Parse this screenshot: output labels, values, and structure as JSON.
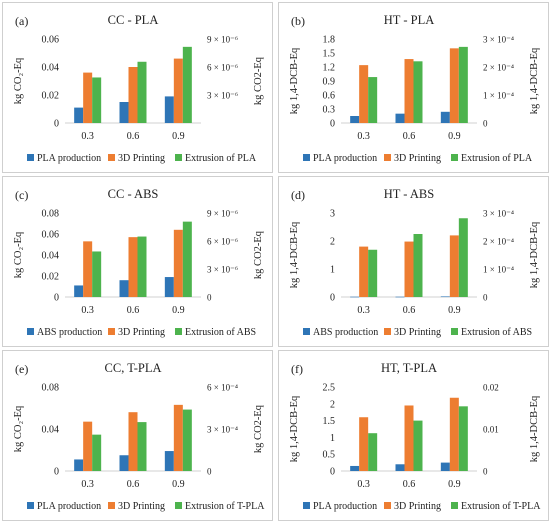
{
  "colors": {
    "s1": "#2E75B6",
    "s2": "#ED7D31",
    "s3": "#4DB34D",
    "axis": "#d0d0d0"
  },
  "chart_data": [
    {
      "type": "bar",
      "panel_label": "(a)",
      "title": "CC - PLA",
      "categories": [
        "0.3",
        "0.6",
        "0.9"
      ],
      "ylabel": "kg CO₂-Eq",
      "ylabel2": "kg CO2-Eq",
      "ylim": [
        0,
        0.06
      ],
      "yticks": [
        "0",
        "0.02",
        "0.04",
        "0.06"
      ],
      "ylim2": [
        0,
        1.07e-05
      ],
      "yticks2": [
        "3 × 10⁻⁶",
        "6 × 10⁻⁶",
        "9 × 10⁻⁶"
      ],
      "series": [
        {
          "name": "PLA production",
          "values": [
            0.011,
            0.015,
            0.019
          ]
        },
        {
          "name": "3D Printing",
          "values": [
            0.036,
            0.04,
            0.046
          ]
        },
        {
          "name": "Extrusion of PLA",
          "values": [
            5.8e-06,
            7.8e-06,
            9.7e-06
          ],
          "axis": "right"
        }
      ]
    },
    {
      "type": "bar",
      "panel_label": "(b)",
      "title": "HT - PLA",
      "categories": [
        "0.3",
        "0.6",
        "0.9"
      ],
      "ylabel": "kg 1,4-DCB-Eq",
      "ylabel2": "kg 1,4-DCB-Eq",
      "ylim": [
        0,
        1.8
      ],
      "yticks": [
        "0",
        "0.3",
        "0.6",
        "0.9",
        "1.2",
        "1.5",
        "1.8"
      ],
      "ylim2": [
        0,
        0.00032
      ],
      "yticks2": [
        "0",
        "1 × 10⁻⁴",
        "2 × 10⁻⁴",
        "3 × 10⁻⁴"
      ],
      "series": [
        {
          "name": "PLA production",
          "values": [
            0.15,
            0.2,
            0.24
          ]
        },
        {
          "name": "3D Printing",
          "values": [
            1.24,
            1.37,
            1.6
          ]
        },
        {
          "name": "Extrusion of PLA",
          "values": [
            0.000175,
            0.000235,
            0.00029
          ],
          "axis": "right"
        }
      ]
    },
    {
      "type": "bar",
      "panel_label": "(c)",
      "title": "CC - ABS",
      "categories": [
        "0.3",
        "0.6",
        "0.9"
      ],
      "ylabel": "kg CO₂-Eq",
      "ylabel2": "kg CO2-Eq",
      "ylim": [
        0,
        0.08
      ],
      "yticks": [
        "0",
        "0.02",
        "0.04",
        "0.06",
        "0.08"
      ],
      "ylim2": [
        0,
        1.07e-05
      ],
      "yticks2": [
        "0",
        "3 × 10⁻⁶",
        "6 × 10⁻⁶",
        "9 × 10⁻⁶"
      ],
      "series": [
        {
          "name": "ABS production",
          "values": [
            0.011,
            0.016,
            0.019
          ]
        },
        {
          "name": "3D Printing",
          "values": [
            0.053,
            0.057,
            0.064
          ]
        },
        {
          "name": "Extrusion of ABS",
          "values": [
            5.8e-06,
            7.7e-06,
            9.6e-06
          ],
          "axis": "right"
        }
      ]
    },
    {
      "type": "bar",
      "panel_label": "(d)",
      "title": "HT - ABS",
      "categories": [
        "0.3",
        "0.6",
        "0.9"
      ],
      "ylabel": "kg 1,4-DCB-Eq",
      "ylabel2": "kg 1,4-DCB-Eq",
      "ylim": [
        0,
        3
      ],
      "yticks": [
        "0",
        "1",
        "2",
        "3"
      ],
      "ylim2": [
        0,
        0.00032
      ],
      "yticks2": [
        "0",
        "1 × 10⁻⁴",
        "2 × 10⁻⁴",
        "3 × 10⁻⁴"
      ],
      "series": [
        {
          "name": "ABS production",
          "values": [
            0.01,
            0.01,
            0.02
          ]
        },
        {
          "name": "3D Printing",
          "values": [
            1.8,
            1.98,
            2.2
          ]
        },
        {
          "name": "Extrusion of ABS",
          "values": [
            0.00018,
            0.00024,
            0.0003
          ],
          "axis": "right"
        }
      ]
    },
    {
      "type": "bar",
      "panel_label": "(e)",
      "title": "CC, T-PLA",
      "categories": [
        "0.3",
        "0.6",
        "0.9"
      ],
      "ylabel": "kg CO₂-Eq",
      "ylabel2": "kg CO2-Eq",
      "ylim": [
        0,
        0.08
      ],
      "yticks": [
        "0",
        "0.04",
        "0.08"
      ],
      "ylim2": [
        0,
        0.00067
      ],
      "yticks2": [
        "0",
        "3 × 10⁻⁴",
        "6 × 10⁻⁴"
      ],
      "series": [
        {
          "name": "PLA production",
          "values": [
            0.011,
            0.015,
            0.019
          ]
        },
        {
          "name": "3D Printing",
          "values": [
            0.047,
            0.056,
            0.063
          ]
        },
        {
          "name": "Extrusion of T-PLA",
          "values": [
            0.00029,
            0.00039,
            0.00049
          ],
          "axis": "right"
        }
      ]
    },
    {
      "type": "bar",
      "panel_label": "(f)",
      "title": "HT, T-PLA",
      "categories": [
        "0.3",
        "0.6",
        "0.9"
      ],
      "ylabel": "kg 1,4-DCB-Eq",
      "ylabel2": "kg 1,4-DCB-Eq",
      "ylim": [
        0,
        2.5
      ],
      "yticks": [
        "0",
        "0.5",
        "1",
        "1.5",
        "2",
        "2.5"
      ],
      "ylim2": [
        0,
        0.02
      ],
      "yticks2": [
        "0",
        "0.01",
        "0.02"
      ],
      "series": [
        {
          "name": "PLA production",
          "values": [
            0.15,
            0.2,
            0.25
          ]
        },
        {
          "name": "3D Printing",
          "values": [
            1.6,
            1.95,
            2.18
          ]
        },
        {
          "name": "Extrusion of T-PLA",
          "values": [
            0.009,
            0.012,
            0.0154
          ],
          "axis": "right"
        }
      ]
    }
  ]
}
